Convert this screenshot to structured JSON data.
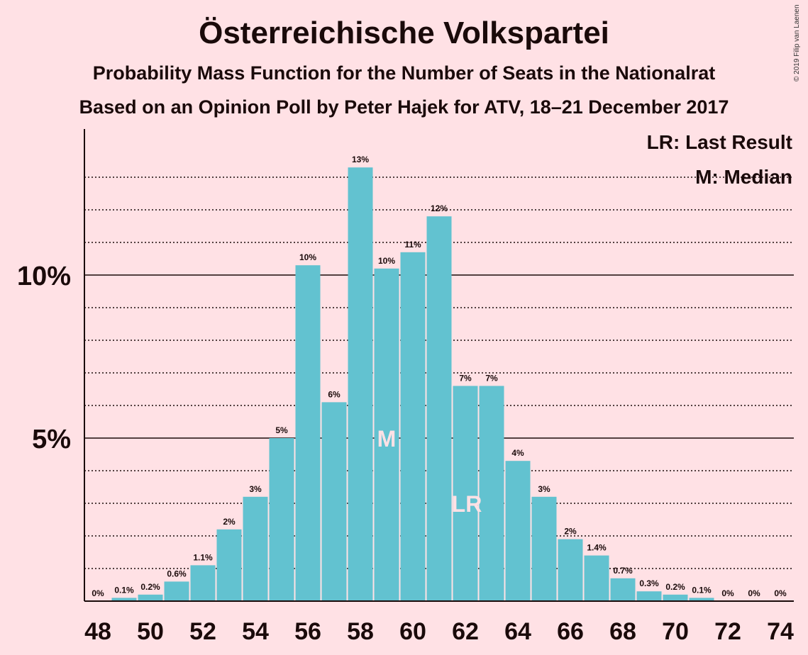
{
  "chart_data": {
    "type": "bar",
    "title": "Österreichische Volkspartei",
    "subtitle": "Probability Mass Function for the Number of Seats in the Nationalrat",
    "subtitle2": "Based on an Opinion Poll by Peter Hajek for ATV, 18–21 December 2017",
    "copyright": "© 2019 Filip van Laenen",
    "x": [
      48,
      49,
      50,
      51,
      52,
      53,
      54,
      55,
      56,
      57,
      58,
      59,
      60,
      61,
      62,
      63,
      64,
      65,
      66,
      67,
      68,
      69,
      70,
      71,
      72,
      73,
      74
    ],
    "values": [
      0,
      0.1,
      0.2,
      0.6,
      1.1,
      2.2,
      3.2,
      5.0,
      10.3,
      6.1,
      13.3,
      10.2,
      10.7,
      11.8,
      6.6,
      6.6,
      4.3,
      3.2,
      1.9,
      1.4,
      0.7,
      0.3,
      0.2,
      0.1,
      0,
      0,
      0
    ],
    "data_labels": [
      "0%",
      "0.1%",
      "0.2%",
      "0.6%",
      "1.1%",
      "2%",
      "3%",
      "5%",
      "10%",
      "6%",
      "13%",
      "10%",
      "11%",
      "12%",
      "7%",
      "7%",
      "4%",
      "3%",
      "2%",
      "1.4%",
      "0.7%",
      "0.3%",
      "0.2%",
      "0.1%",
      "0%",
      "0%",
      "0%"
    ],
    "x_tick_labels": [
      "48",
      "50",
      "52",
      "54",
      "56",
      "58",
      "60",
      "62",
      "64",
      "66",
      "68",
      "70",
      "72",
      "74"
    ],
    "y_tick_labels": [
      {
        "value": 5,
        "label": "5%"
      },
      {
        "value": 10,
        "label": "10%"
      }
    ],
    "ylim": [
      0,
      14.5
    ],
    "median_seat": 59,
    "median_marker": "M",
    "last_result_seat": 62,
    "last_result_marker": "LR",
    "legend": [
      "LR: Last Result",
      "M: Median"
    ],
    "legend_position": "top-right",
    "grid": "dotted every 1%, solid at 5% and 10%",
    "colors": {
      "bar": "#62c2d0",
      "background": "#ffe1e5",
      "text": "#1a0a0a",
      "marker_text": "#ffe1e5"
    }
  }
}
